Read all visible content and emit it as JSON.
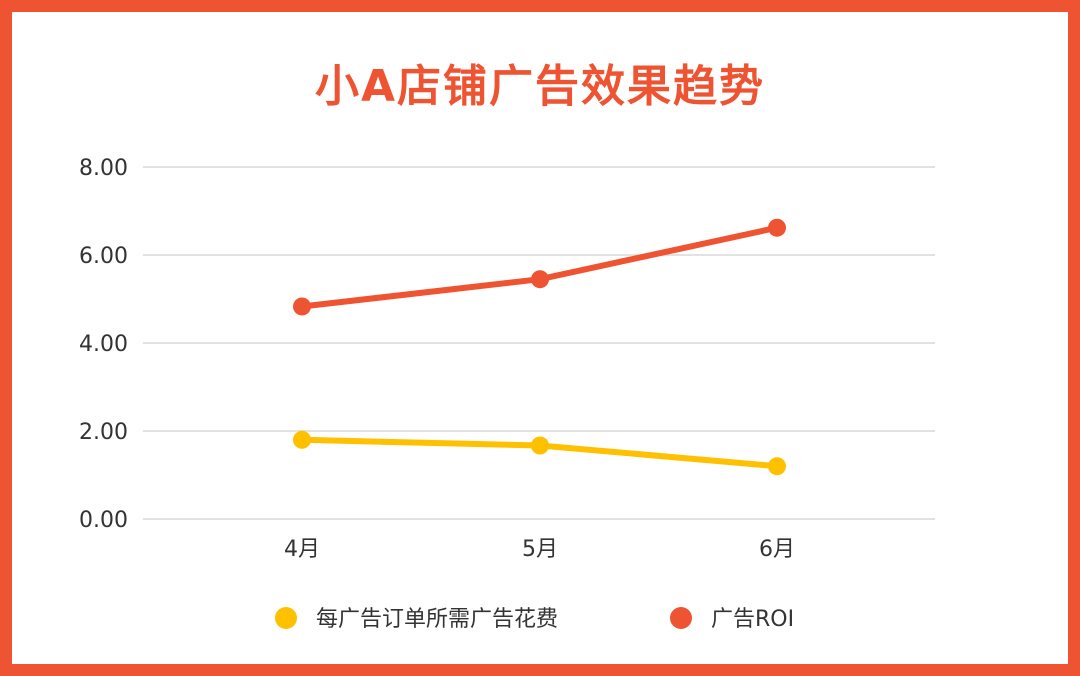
{
  "chart_data": {
    "type": "line",
    "title": "小A店铺广告效果趋势",
    "xlabel": "",
    "ylabel": "",
    "categories": [
      "4月",
      "5月",
      "6月"
    ],
    "y_ticks": [
      "0.00",
      "2.00",
      "4.00",
      "6.00",
      "8.00"
    ],
    "ylim": [
      0,
      8
    ],
    "grid": true,
    "legend_position": "bottom",
    "series": [
      {
        "name": "每广告订单所需广告花费",
        "values": [
          1.8,
          1.67,
          1.2
        ],
        "color": "#FFC000"
      },
      {
        "name": "广告ROI",
        "values": [
          4.83,
          5.45,
          6.62
        ],
        "color": "#EE5332"
      }
    ]
  },
  "colors": {
    "border": "#EE5332",
    "title": "#EE5332",
    "grid": "#D9D9D9",
    "text": "#333333"
  }
}
